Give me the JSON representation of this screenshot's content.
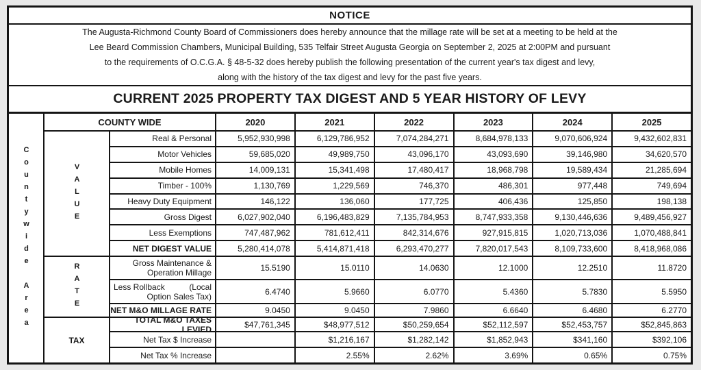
{
  "notice": {
    "title": "NOTICE",
    "lines": [
      "The Augusta-Richmond County Board of Commissioners does hereby announce that the millage rate will be set at a meeting to be held at the",
      "Lee Beard Commission Chambers, Municipal Building, 535 Telfair Street Augusta Georgia on September 2, 2025  at 2:00PM and pursuant",
      "to the requirements of O.C.G.A. § 48-5-32 does hereby publish the following presentation of the current year's tax digest and levy,",
      "along with the history of the tax digest and levy for the past five years."
    ]
  },
  "doc_title": "CURRENT 2025 PROPERTY TAX DIGEST AND 5 YEAR HISTORY OF LEVY",
  "table": {
    "area_label": "Countywide Area",
    "group_header": "COUNTY WIDE",
    "years": [
      "2020",
      "2021",
      "2022",
      "2023",
      "2024",
      "2025"
    ],
    "sections": {
      "value": "VALUE",
      "rate": "RATE",
      "tax": "TAX"
    },
    "rows": [
      {
        "label": "Real & Personal",
        "values": [
          "5,952,930,998",
          "6,129,786,952",
          "7,074,284,271",
          "8,684,978,133",
          "9,070,606,924",
          "9,432,602,831"
        ]
      },
      {
        "label": "Motor Vehicles",
        "values": [
          "59,685,020",
          "49,989,750",
          "43,096,170",
          "43,093,690",
          "39,146,980",
          "34,620,570"
        ]
      },
      {
        "label": "Mobile Homes",
        "values": [
          "14,009,131",
          "15,341,498",
          "17,480,417",
          "18,968,798",
          "19,589,434",
          "21,285,694"
        ]
      },
      {
        "label": "Timber - 100%",
        "values": [
          "1,130,769",
          "1,229,569",
          "746,370",
          "486,301",
          "977,448",
          "749,694"
        ]
      },
      {
        "label": "Heavy Duty Equipment",
        "values": [
          "146,122",
          "136,060",
          "177,725",
          "406,436",
          "125,850",
          "198,138"
        ]
      },
      {
        "label": "Gross Digest",
        "values": [
          "6,027,902,040",
          "6,196,483,829",
          "7,135,784,953",
          "8,747,933,358",
          "9,130,446,636",
          "9,489,456,927"
        ]
      },
      {
        "label": "Less Exemptions",
        "values": [
          "747,487,962",
          "781,612,411",
          "842,314,676",
          "927,915,815",
          "1,020,713,036",
          "1,070,488,841"
        ]
      },
      {
        "label": "NET DIGEST VALUE",
        "values": [
          "5,280,414,078",
          "5,414,871,418",
          "6,293,470,277",
          "7,820,017,543",
          "8,109,733,600",
          "8,418,968,086"
        ]
      },
      {
        "label1": "Gross Maintenance &",
        "label2": "Operation Millage",
        "values": [
          "15.5190",
          "15.0110",
          "14.0630",
          "12.1000",
          "12.2510",
          "11.8720"
        ]
      },
      {
        "label1": "Less Rollback",
        "label1r": "(Local",
        "label2": "Option Sales Tax)",
        "values": [
          "6.4740",
          "5.9660",
          "6.0770",
          "5.4360",
          "5.7830",
          "5.5950"
        ]
      },
      {
        "label": "NET M&O MILLAGE RATE",
        "values": [
          "9.0450",
          "9.0450",
          "7.9860",
          "6.6640",
          "6.4680",
          "6.2770"
        ]
      },
      {
        "label": "TOTAL M&O TAXES LEVIED",
        "values": [
          "$47,761,345",
          "$48,977,512",
          "$50,259,654",
          "$52,112,597",
          "$52,453,757",
          "$52,845,863"
        ]
      },
      {
        "label": "Net Tax $ Increase",
        "values": [
          "",
          "$1,216,167",
          "$1,282,142",
          "$1,852,943",
          "$341,160",
          "$392,106"
        ]
      },
      {
        "label": "Net Tax % Increase",
        "values": [
          "",
          "2.55%",
          "2.62%",
          "3.69%",
          "0.65%",
          "0.75%"
        ]
      }
    ]
  }
}
